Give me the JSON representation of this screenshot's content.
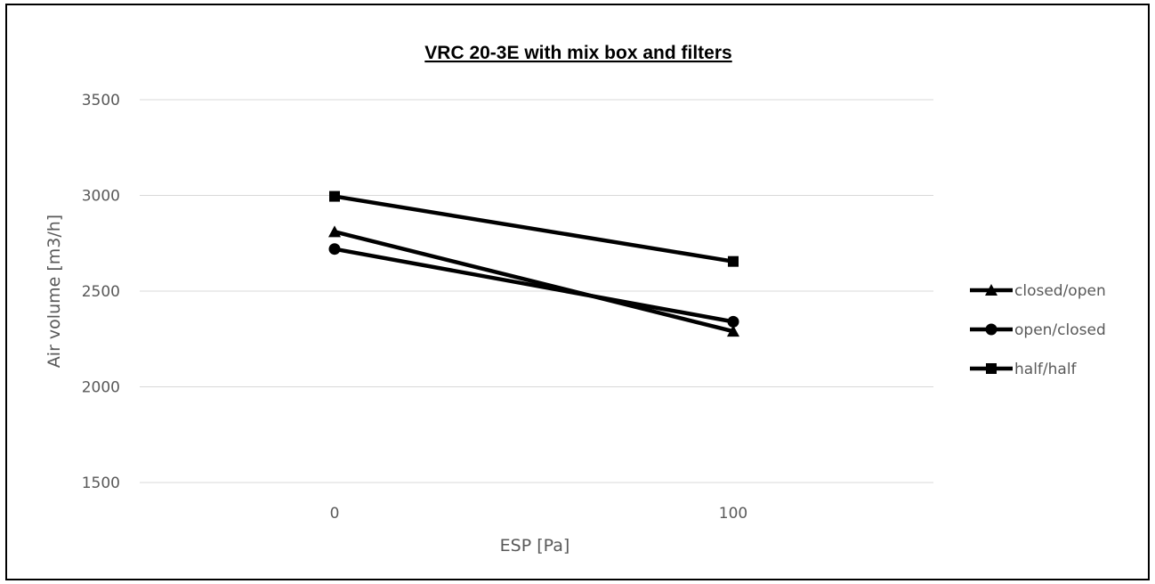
{
  "chart_data": {
    "type": "line",
    "title": "VRC 20-3E with mix box and filters",
    "xlabel": "ESP [Pa]",
    "ylabel": "Air volume [m3/h]",
    "categories": [
      "0",
      "100"
    ],
    "ylim": [
      1500,
      3500
    ],
    "yticks": [
      "1500",
      "2000",
      "2500",
      "3000",
      "3500"
    ],
    "grid": true,
    "legend_position": "right",
    "line_color": "#000000",
    "grid_color": "#d9d9d9",
    "series": [
      {
        "name": "closed/open",
        "marker": "triangle",
        "values": [
          2810,
          2290
        ]
      },
      {
        "name": "open/closed",
        "marker": "circle",
        "values": [
          2720,
          2340
        ]
      },
      {
        "name": "half/half",
        "marker": "square",
        "values": [
          2995,
          2655
        ]
      }
    ]
  }
}
